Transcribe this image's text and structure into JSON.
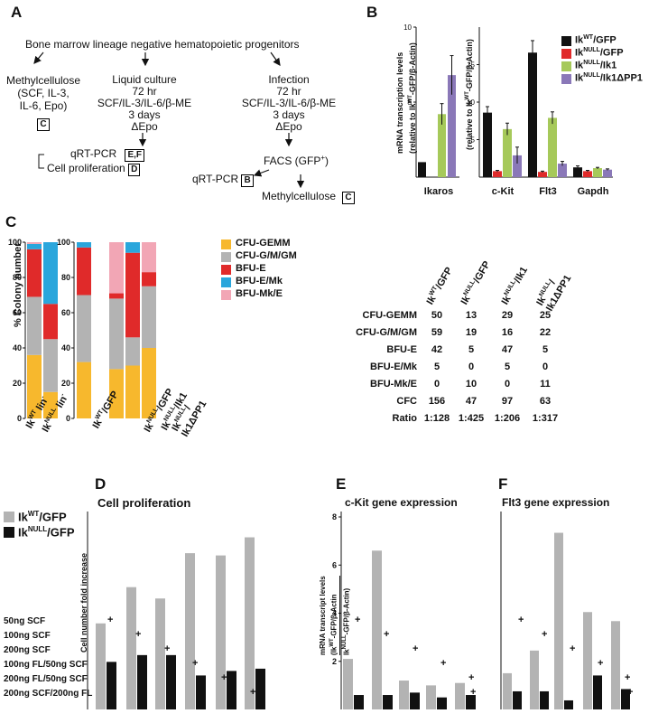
{
  "panels": {
    "A": "A",
    "B": "B",
    "C": "C",
    "D": "D",
    "E": "E",
    "F": "F"
  },
  "panelA": {
    "source": "Bone marrow lineage negative hematopoietic progenitors",
    "branch1": {
      "lines": [
        "Methylcellulose",
        "(SCF, IL-3,",
        "IL-6, Epo)"
      ],
      "box": "C"
    },
    "branch2": {
      "lines": [
        "Liquid culture",
        "72 hr",
        "SCF/IL-3/IL-6/β-ME",
        "3 days",
        "ΔEpo"
      ],
      "out1": "qRT-PCR",
      "box1": "E,F",
      "out2": "Cell proliferation",
      "box2": "D"
    },
    "branch3": {
      "lines": [
        "Infection",
        "72 hr",
        "SCF/IL-3/IL-6/β-ME",
        "3 days",
        "ΔEpo"
      ],
      "facs": "FACS (GFP",
      "facs_sup": "+",
      "facs_end": ")",
      "qrt": "qRT-PCR",
      "box_qrt": "B",
      "methyl": "Methylcellulose",
      "box_methyl": "C"
    }
  },
  "panelB": {
    "ylabel1": "mRNA transcription levels",
    "ylabel2": "(relative to Ik",
    "ylabel2_sup": "WT",
    "ylabel2_end": "-GFP/β-Actin)",
    "ylabel_right_1": "(relative to Ik",
    "ylabel_right_sup": "WT",
    "ylabel_right_end": "-GFP/β-Actin)",
    "legend": [
      {
        "base": "Ik",
        "sup": "WT",
        "rest": "/GFP",
        "color": "#111111"
      },
      {
        "base": "Ik",
        "sup": "NULL",
        "rest": "/GFP",
        "color": "#e02a2a"
      },
      {
        "base": "Ik",
        "sup": "NULL",
        "rest": "/Ik1",
        "color": "#a6c95a"
      },
      {
        "base": "Ik",
        "sup": "NULL",
        "rest": "/Ik1ΔPP1",
        "color": "#8a78b8"
      }
    ]
  },
  "panelC": {
    "ylabel": "% Colony number",
    "legend": [
      {
        "label": "CFU-GEMM",
        "color": "#f7b82d"
      },
      {
        "label": "CFU-G/M/GM",
        "color": "#b3b3b3"
      },
      {
        "label": "BFU-E",
        "color": "#e02a2a"
      },
      {
        "label": "BFU-E/Mk",
        "color": "#2aa6dc"
      },
      {
        "label": "BFU-Mk/E",
        "color": "#f2a6b5"
      }
    ],
    "xlabels": [
      {
        "base": "Ik",
        "sup": "WT",
        "rest": " lin",
        "sup2": "-"
      },
      {
        "base": "Ik",
        "sup": "NULL",
        "rest": " lin",
        "sup2": "-"
      },
      {
        "base": "Ik",
        "sup": "WT",
        "rest": "/GFP",
        "sup2": ""
      },
      {
        "base": "Ik",
        "sup": "NULL",
        "rest": "/GFP",
        "sup2": ""
      },
      {
        "base": "Ik",
        "sup": "NULL",
        "rest": "/Ik1",
        "sup2": ""
      },
      {
        "base": "Ik",
        "sup": "NULL",
        "rest": "/",
        "sup2": "",
        "line2": "Ik1ΔPP1"
      }
    ],
    "table": {
      "headers": [
        {
          "base": "Ik",
          "sup": "WT",
          "rest": "/GFP"
        },
        {
          "base": "Ik",
          "sup": "NULL",
          "rest": "/GFP"
        },
        {
          "base": "Ik",
          "sup": "NULL",
          "rest": "/Ik1"
        },
        {
          "base": "Ik",
          "sup": "NULL",
          "rest": "/",
          "line2": "Ik1ΔPP1"
        }
      ],
      "rows": [
        {
          "label": "CFU-GEMM",
          "values": [
            "50",
            "13",
            "29",
            "25"
          ]
        },
        {
          "label": "CFU-G/M/GM",
          "values": [
            "59",
            "19",
            "16",
            "22"
          ]
        },
        {
          "label": "BFU-E",
          "values": [
            "42",
            "5",
            "47",
            "5"
          ]
        },
        {
          "label": "BFU-E/Mk",
          "values": [
            "5",
            "0",
            "5",
            "0"
          ]
        },
        {
          "label": "BFU-Mk/E",
          "values": [
            "0",
            "10",
            "0",
            "11"
          ]
        },
        {
          "label": "CFC",
          "values": [
            "156",
            "47",
            "97",
            "63"
          ]
        },
        {
          "label": "Ratio",
          "values": [
            "1:128",
            "1:425",
            "1:206",
            "1:317"
          ]
        }
      ]
    }
  },
  "panelDEF": {
    "legend": [
      {
        "base": "Ik",
        "sup": "WT",
        "rest": "/GFP",
        "color": "#b3b3b3"
      },
      {
        "base": "Ik",
        "sup": "NULL",
        "rest": "/GFP",
        "color": "#111111"
      }
    ],
    "D_title": "Cell proliferation",
    "D_ylabel": "Cell number fold increase",
    "E_title": "c-Kit gene expression",
    "F_title": "Flt3 gene expression",
    "E_ylabel1": "mRNA transcript levels",
    "E_ylabel2": "(Ik",
    "E_ylabel2_sup": "WT",
    "E_ylabel2_end": "-GFP/β-Actin",
    "E_ylabel3": "Ik",
    "E_ylabel3_sup": "NULL",
    "E_ylabel3_end": "-GFP/β-Actin)",
    "conditions": [
      "50ng SCF",
      "100ng SCF",
      "200ng SCF",
      "100ng FL/50ng SCF",
      "200ng FL/50ng SCF",
      "200ng SCF/200ng FL"
    ],
    "plus": "+"
  },
  "chart_data": [
    {
      "id": "B_ikaros",
      "type": "bar",
      "categories": [
        "Ikaros"
      ],
      "series": [
        {
          "name": "IkWT/GFP",
          "values": [
            1.0
          ],
          "err": [
            0
          ]
        },
        {
          "name": "IkNULL/GFP",
          "values": [
            0
          ],
          "err": [
            0
          ]
        },
        {
          "name": "IkNULL/Ik1",
          "values": [
            4.2
          ],
          "err": [
            0.7
          ]
        },
        {
          "name": "IkNULL/Ik1ΔPP1",
          "values": [
            6.8
          ],
          "err": [
            1.3
          ]
        }
      ],
      "ylim": [
        0,
        10
      ],
      "yticks": [
        5,
        10
      ]
    },
    {
      "id": "B_genes",
      "type": "bar",
      "categories": [
        "c-Kit",
        "Flt3",
        "Gapdh"
      ],
      "series": [
        {
          "name": "IkWT/GFP",
          "values": [
            8.6,
            16.6,
            1.3
          ],
          "err": [
            0.8,
            1.6,
            0.2
          ]
        },
        {
          "name": "IkNULL/GFP",
          "values": [
            0.8,
            0.7,
            0.8
          ],
          "err": [
            0.1,
            0.1,
            0.1
          ]
        },
        {
          "name": "IkNULL/Ik1",
          "values": [
            6.4,
            7.9,
            1.2
          ],
          "err": [
            0.8,
            0.8,
            0.1
          ]
        },
        {
          "name": "IkNULL/Ik1ΔPP1",
          "values": [
            2.9,
            1.8,
            1.0
          ],
          "err": [
            1.1,
            0.3,
            0.1
          ]
        }
      ],
      "ylim": [
        0,
        20
      ],
      "yticks": [
        5,
        10,
        15
      ]
    },
    {
      "id": "C_stacked",
      "type": "bar",
      "stacked": true,
      "categories": [
        "IkWT lin-",
        "IkNULL lin-",
        "IkWT/GFP",
        "IkNULL/GFP",
        "IkNULL/Ik1",
        "IkNULL/Ik1ΔPP1"
      ],
      "series": [
        {
          "name": "CFU-GEMM",
          "values": [
            36,
            15,
            32,
            28,
            30,
            40
          ]
        },
        {
          "name": "CFU-G/M/GM",
          "values": [
            33,
            30,
            38,
            40,
            16,
            35
          ]
        },
        {
          "name": "BFU-E",
          "values": [
            27,
            20,
            27,
            3,
            48,
            8
          ]
        },
        {
          "name": "BFU-E/Mk",
          "values": [
            3,
            35,
            3,
            0,
            6,
            0
          ]
        },
        {
          "name": "BFU-Mk/E",
          "values": [
            1,
            0,
            0,
            29,
            0,
            17
          ]
        }
      ],
      "ylim": [
        0,
        100
      ],
      "yticks": [
        0,
        20,
        40,
        60,
        80,
        100
      ]
    },
    {
      "id": "D",
      "type": "bar",
      "categories": [
        "50ng SCF",
        "100ng SCF",
        "200ng SCF",
        "100ng FL/50ng SCF",
        "200ng FL/50ng SCF",
        "200ng SCF/200ng FL"
      ],
      "series": [
        {
          "name": "IkWT/GFP",
          "values": [
            3.8,
            5.4,
            4.9,
            6.9,
            6.8,
            7.6
          ]
        },
        {
          "name": "IkNULL/GFP",
          "values": [
            2.1,
            2.4,
            2.4,
            1.5,
            1.7,
            1.8
          ]
        }
      ],
      "ylim": [
        0,
        8.5
      ]
    },
    {
      "id": "E",
      "type": "bar",
      "categories": [
        "50ng SCF",
        "100ng SCF",
        "200ng SCF",
        "100ng FL/50ng SCF",
        "200ng FL/50ng SCF",
        "200ng SCF/200ng FL"
      ],
      "series": [
        {
          "name": "IkWT/GFP",
          "values": [
            2.1,
            6.6,
            1.2,
            1.0,
            1.1,
            0
          ]
        },
        {
          "name": "IkNULL/GFP",
          "values": [
            0.6,
            0.6,
            0.7,
            0.5,
            0.6,
            0
          ]
        }
      ],
      "ylim": [
        0,
        8
      ],
      "yticks": [
        2,
        4,
        6,
        8
      ]
    },
    {
      "id": "F",
      "type": "bar",
      "categories": [
        "50ng SCF",
        "100ng SCF",
        "200ng SCF",
        "100ng FL/50ng SCF",
        "200ng FL/50ng SCF",
        "200ng SCF/200ng FL"
      ],
      "series": [
        {
          "name": "IkWT/GFP",
          "values": [
            1.6,
            2.6,
            7.8,
            4.3,
            3.9,
            0
          ]
        },
        {
          "name": "IkNULL/GFP",
          "values": [
            0.8,
            0.8,
            0.4,
            1.5,
            0.9,
            0
          ]
        }
      ],
      "ylim": [
        0,
        8.5
      ]
    }
  ]
}
